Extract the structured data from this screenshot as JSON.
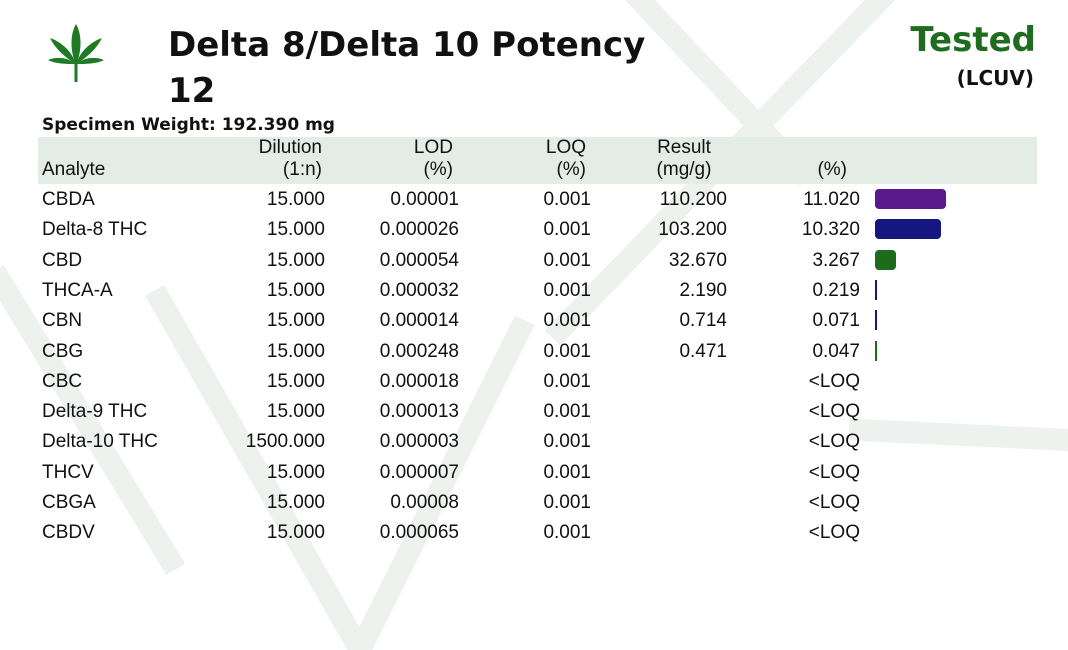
{
  "header": {
    "title": "Delta 8/Delta 10 Potency 12",
    "status": "Tested",
    "method": "(LCUV)",
    "specimen": "Specimen Weight: 192.390 mg"
  },
  "columns": {
    "analyte": "Analyte",
    "dilution": [
      "Dilution",
      "(1:n)"
    ],
    "lod": [
      "LOD",
      "(%)"
    ],
    "loq": [
      "LOQ",
      "(%)"
    ],
    "result": [
      "Result",
      "(mg/g)"
    ],
    "percent": "(%)"
  },
  "colors": {
    "brand_green": "#1f6b1f",
    "header_band": "#e4ece6",
    "bar_purple": "#5b1a8c",
    "bar_navy": "#15167f",
    "bar_green": "#1e6b1e"
  },
  "bar_max_percent": 11.02,
  "rows": [
    {
      "analyte": "CBDA",
      "dilution": "15.000",
      "lod": "0.00001",
      "loq": "0.001",
      "result": "110.200",
      "percent": "11.020",
      "bar_value": 11.02,
      "bar_color": "#5b1a8c"
    },
    {
      "analyte": "Delta-8 THC",
      "dilution": "15.000",
      "lod": "0.000026",
      "loq": "0.001",
      "result": "103.200",
      "percent": "10.320",
      "bar_value": 10.32,
      "bar_color": "#15167f"
    },
    {
      "analyte": "CBD",
      "dilution": "15.000",
      "lod": "0.000054",
      "loq": "0.001",
      "result": "32.670",
      "percent": "3.267",
      "bar_value": 3.267,
      "bar_color": "#1e6b1e"
    },
    {
      "analyte": "THCA-A",
      "dilution": "15.000",
      "lod": "0.000032",
      "loq": "0.001",
      "result": "2.190",
      "percent": "0.219",
      "bar_value": 0.219,
      "bar_color": "#15167f"
    },
    {
      "analyte": "CBN",
      "dilution": "15.000",
      "lod": "0.000014",
      "loq": "0.001",
      "result": "0.714",
      "percent": "0.071",
      "bar_value": 0.071,
      "bar_color": "#15167f"
    },
    {
      "analyte": "CBG",
      "dilution": "15.000",
      "lod": "0.000248",
      "loq": "0.001",
      "result": "0.471",
      "percent": "0.047",
      "bar_value": 0.047,
      "bar_color": "#1e6b1e"
    },
    {
      "analyte": "CBC",
      "dilution": "15.000",
      "lod": "0.000018",
      "loq": "0.001",
      "result": "",
      "percent": "<LOQ",
      "bar_value": 0,
      "bar_color": ""
    },
    {
      "analyte": "Delta-9 THC",
      "dilution": "15.000",
      "lod": "0.000013",
      "loq": "0.001",
      "result": "",
      "percent": "<LOQ",
      "bar_value": 0,
      "bar_color": ""
    },
    {
      "analyte": "Delta-10 THC",
      "dilution": "1500.000",
      "lod": "0.000003",
      "loq": "0.001",
      "result": "",
      "percent": "<LOQ",
      "bar_value": 0,
      "bar_color": ""
    },
    {
      "analyte": "THCV",
      "dilution": "15.000",
      "lod": "0.000007",
      "loq": "0.001",
      "result": "",
      "percent": "<LOQ",
      "bar_value": 0,
      "bar_color": ""
    },
    {
      "analyte": "CBGA",
      "dilution": "15.000",
      "lod": "0.00008",
      "loq": "0.001",
      "result": "",
      "percent": "<LOQ",
      "bar_value": 0,
      "bar_color": ""
    },
    {
      "analyte": "CBDV",
      "dilution": "15.000",
      "lod": "0.000065",
      "loq": "0.001",
      "result": "",
      "percent": "<LOQ",
      "bar_value": 0,
      "bar_color": ""
    }
  ]
}
